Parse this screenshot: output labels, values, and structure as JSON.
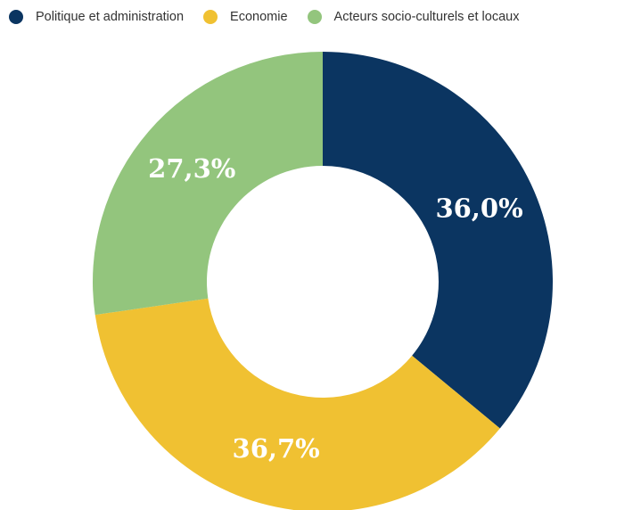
{
  "chart_data": {
    "type": "pie",
    "variant": "donut",
    "title": "",
    "legend_position": "top",
    "series": [
      {
        "name": "Politique et administration",
        "value": 36.0,
        "label": "36,0%",
        "color": "#0b3561"
      },
      {
        "name": "Economie",
        "value": 36.7,
        "label": "36,7%",
        "color": "#f0c132"
      },
      {
        "name": "Acteurs socio-culturels et locaux",
        "value": 27.3,
        "label": "27,3%",
        "color": "#93c57d"
      }
    ]
  }
}
